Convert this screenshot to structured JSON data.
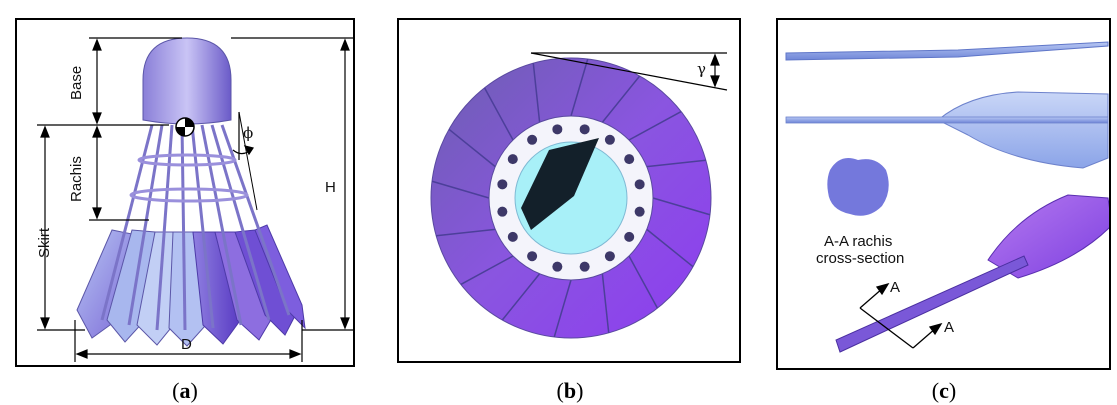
{
  "panel_a": {
    "label_base": "Base",
    "label_rachis": "Rachis",
    "label_skirt": "Skirt",
    "label_h": "H",
    "label_d": "D",
    "label_phi": "ϕ",
    "caption_open": "(",
    "caption_letter": "a",
    "caption_close": ")"
  },
  "panel_b": {
    "label_gamma": "γ",
    "caption_open": "(",
    "caption_letter": "b",
    "caption_close": ")"
  },
  "panel_c": {
    "section_line1": "A-A rachis",
    "section_line2": "cross-section",
    "label_a1": "A",
    "label_a2": "A",
    "caption_open": "(",
    "caption_letter": "c",
    "caption_close": ")"
  },
  "colors": {
    "feather_light": "#a9b8f0",
    "feather_dark": "#6a4fd0",
    "purple": "#7d3fe0",
    "core_cyan": "#a8f0f8",
    "ink": "#000000"
  }
}
